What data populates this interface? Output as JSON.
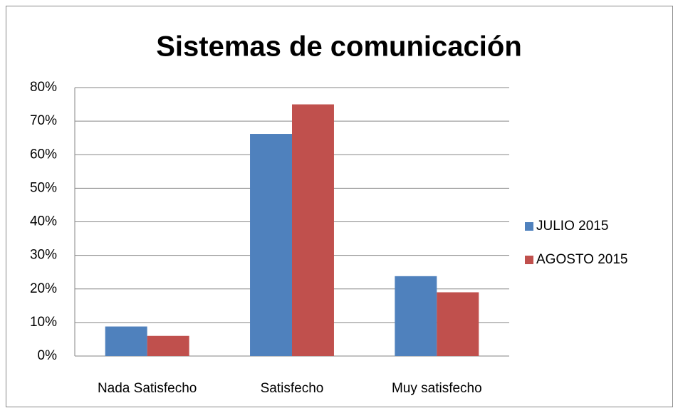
{
  "chart_data": {
    "type": "bar",
    "title": "Sistemas de comunicación",
    "categories": [
      "Nada Satisfecho",
      "Satisfecho",
      "Muy satisfecho"
    ],
    "series": [
      {
        "name": "JULIO 2015",
        "color": "#4f81bd",
        "values": [
          8.8,
          66.2,
          23.8
        ]
      },
      {
        "name": "AGOSTO 2015",
        "color": "#c0504d",
        "values": [
          6,
          75,
          19
        ]
      }
    ],
    "ylim": [
      0,
      80
    ],
    "yticks": [
      {
        "value": 0,
        "label": "0%"
      },
      {
        "value": 10,
        "label": "10%"
      },
      {
        "value": 20,
        "label": "20%"
      },
      {
        "value": 30,
        "label": "30%"
      },
      {
        "value": 40,
        "label": "40%"
      },
      {
        "value": 50,
        "label": "50%"
      },
      {
        "value": 60,
        "label": "60%"
      },
      {
        "value": 70,
        "label": "70%"
      },
      {
        "value": 80,
        "label": "80%"
      }
    ],
    "grid": true,
    "legend": "right"
  }
}
